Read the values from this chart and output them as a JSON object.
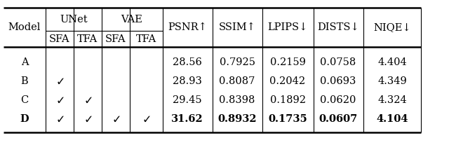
{
  "rows": [
    {
      "model": "A",
      "sfa_u": false,
      "tfa_u": false,
      "sfa_v": false,
      "tfa_v": false,
      "psnr": "28.56",
      "ssim": "0.7925",
      "lpips": "0.2159",
      "dists": "0.0758",
      "niqe": "4.404",
      "bold": false
    },
    {
      "model": "B",
      "sfa_u": true,
      "tfa_u": false,
      "sfa_v": false,
      "tfa_v": false,
      "psnr": "28.93",
      "ssim": "0.8087",
      "lpips": "0.2042",
      "dists": "0.0693",
      "niqe": "4.349",
      "bold": false
    },
    {
      "model": "C",
      "sfa_u": true,
      "tfa_u": true,
      "sfa_v": false,
      "tfa_v": false,
      "psnr": "29.45",
      "ssim": "0.8398",
      "lpips": "0.1892",
      "dists": "0.0620",
      "niqe": "4.324",
      "bold": false
    },
    {
      "model": "D",
      "sfa_u": true,
      "tfa_u": true,
      "sfa_v": true,
      "tfa_v": true,
      "psnr": "31.62",
      "ssim": "0.8932",
      "lpips": "0.1735",
      "dists": "0.0607",
      "niqe": "4.104",
      "bold": true
    }
  ],
  "metric_labels": [
    "PSNR↑",
    "SSIM↑",
    "LPIPS↓",
    "DISTS↓",
    "NIQE↓"
  ],
  "sub_labels": [
    "SFA",
    "TFA",
    "SFA",
    "TFA"
  ],
  "group_labels": [
    "UNet",
    "VAE"
  ],
  "background_color": "#ffffff",
  "fontsize": 10.5
}
